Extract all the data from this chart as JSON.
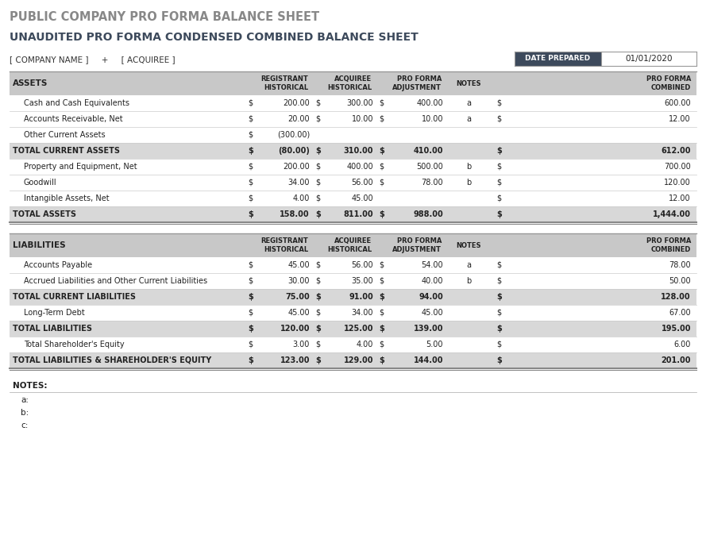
{
  "title1": "PUBLIC COMPANY PRO FORMA BALANCE SHEET",
  "title2": "UNAUDITED PRO FORMA CONDENSED COMBINED BALANCE SHEET",
  "company_line": "[ COMPANY NAME ]     +     [ ACQUIREE ]",
  "date_label": "DATE PREPARED",
  "date_value": "01/01/2020",
  "bg_color": "#ffffff",
  "header_bg": "#c8c8c8",
  "subheader_bg": "#d8d8d8",
  "row_bg_white": "#ffffff",
  "date_box_bg": "#3d4a5c",
  "date_box_fg": "#ffffff",
  "title1_color": "#888888",
  "title2_color": "#3d4a5c",
  "assets_data": [
    {
      "label": "Cash and Cash Equivalents",
      "bold": false,
      "total": false,
      "d1": "$",
      "v1": "200.00",
      "d2": "$",
      "v2": "300.00",
      "d3": "$",
      "v3": "400.00",
      "note": "a",
      "d4": "$",
      "v4": "600.00"
    },
    {
      "label": "Accounts Receivable, Net",
      "bold": false,
      "total": false,
      "d1": "$",
      "v1": "20.00",
      "d2": "$",
      "v2": "10.00",
      "d3": "$",
      "v3": "10.00",
      "note": "a",
      "d4": "$",
      "v4": "12.00"
    },
    {
      "label": "Other Current Assets",
      "bold": false,
      "total": false,
      "d1": "$",
      "v1": "(300.00)",
      "d2": "",
      "v2": "",
      "d3": "",
      "v3": "",
      "note": "",
      "d4": "",
      "v4": ""
    },
    {
      "label": "TOTAL CURRENT ASSETS",
      "bold": true,
      "total": true,
      "d1": "$",
      "v1": "(80.00)",
      "d2": "$",
      "v2": "310.00",
      "d3": "$",
      "v3": "410.00",
      "note": "",
      "d4": "$",
      "v4": "612.00"
    },
    {
      "label": "Property and Equipment, Net",
      "bold": false,
      "total": false,
      "d1": "$",
      "v1": "200.00",
      "d2": "$",
      "v2": "400.00",
      "d3": "$",
      "v3": "500.00",
      "note": "b",
      "d4": "$",
      "v4": "700.00"
    },
    {
      "label": "Goodwill",
      "bold": false,
      "total": false,
      "d1": "$",
      "v1": "34.00",
      "d2": "$",
      "v2": "56.00",
      "d3": "$",
      "v3": "78.00",
      "note": "b",
      "d4": "$",
      "v4": "120.00"
    },
    {
      "label": "Intangible Assets, Net",
      "bold": false,
      "total": false,
      "d1": "$",
      "v1": "4.00",
      "d2": "$",
      "v2": "45.00",
      "d3": "",
      "v3": "",
      "note": "",
      "d4": "$",
      "v4": "12.00"
    },
    {
      "label": "TOTAL ASSETS",
      "bold": true,
      "total": true,
      "d1": "$",
      "v1": "158.00",
      "d2": "$",
      "v2": "811.00",
      "d3": "$",
      "v3": "988.00",
      "note": "",
      "d4": "$",
      "v4": "1,444.00"
    }
  ],
  "liabilities_data": [
    {
      "label": "Accounts Payable",
      "bold": false,
      "total": false,
      "d1": "$",
      "v1": "45.00",
      "d2": "$",
      "v2": "56.00",
      "d3": "$",
      "v3": "54.00",
      "note": "a",
      "d4": "$",
      "v4": "78.00"
    },
    {
      "label": "Accrued Liabilities and Other Current Liabilities",
      "bold": false,
      "total": false,
      "d1": "$",
      "v1": "30.00",
      "d2": "$",
      "v2": "35.00",
      "d3": "$",
      "v3": "40.00",
      "note": "b",
      "d4": "$",
      "v4": "50.00"
    },
    {
      "label": "TOTAL CURRENT LIABILITIES",
      "bold": true,
      "total": true,
      "d1": "$",
      "v1": "75.00",
      "d2": "$",
      "v2": "91.00",
      "d3": "$",
      "v3": "94.00",
      "note": "",
      "d4": "$",
      "v4": "128.00"
    },
    {
      "label": "Long-Term Debt",
      "bold": false,
      "total": false,
      "d1": "$",
      "v1": "45.00",
      "d2": "$",
      "v2": "34.00",
      "d3": "$",
      "v3": "45.00",
      "note": "",
      "d4": "$",
      "v4": "67.00"
    },
    {
      "label": "TOTAL LIABILITIES",
      "bold": true,
      "total": true,
      "d1": "$",
      "v1": "120.00",
      "d2": "$",
      "v2": "125.00",
      "d3": "$",
      "v3": "139.00",
      "note": "",
      "d4": "$",
      "v4": "195.00"
    },
    {
      "label": "Total Shareholder's Equity",
      "bold": false,
      "total": false,
      "d1": "$",
      "v1": "3.00",
      "d2": "$",
      "v2": "4.00",
      "d3": "$",
      "v3": "5.00",
      "note": "",
      "d4": "$",
      "v4": "6.00"
    },
    {
      "label": "TOTAL LIABILITIES & SHAREHOLDER'S EQUITY",
      "bold": true,
      "total": true,
      "d1": "$",
      "v1": "123.00",
      "d2": "$",
      "v2": "129.00",
      "d3": "$",
      "v3": "144.00",
      "note": "",
      "d4": "$",
      "v4": "201.00"
    }
  ],
  "notes_label": "NOTES:",
  "notes_items": [
    "a:",
    "b:",
    "c:"
  ]
}
